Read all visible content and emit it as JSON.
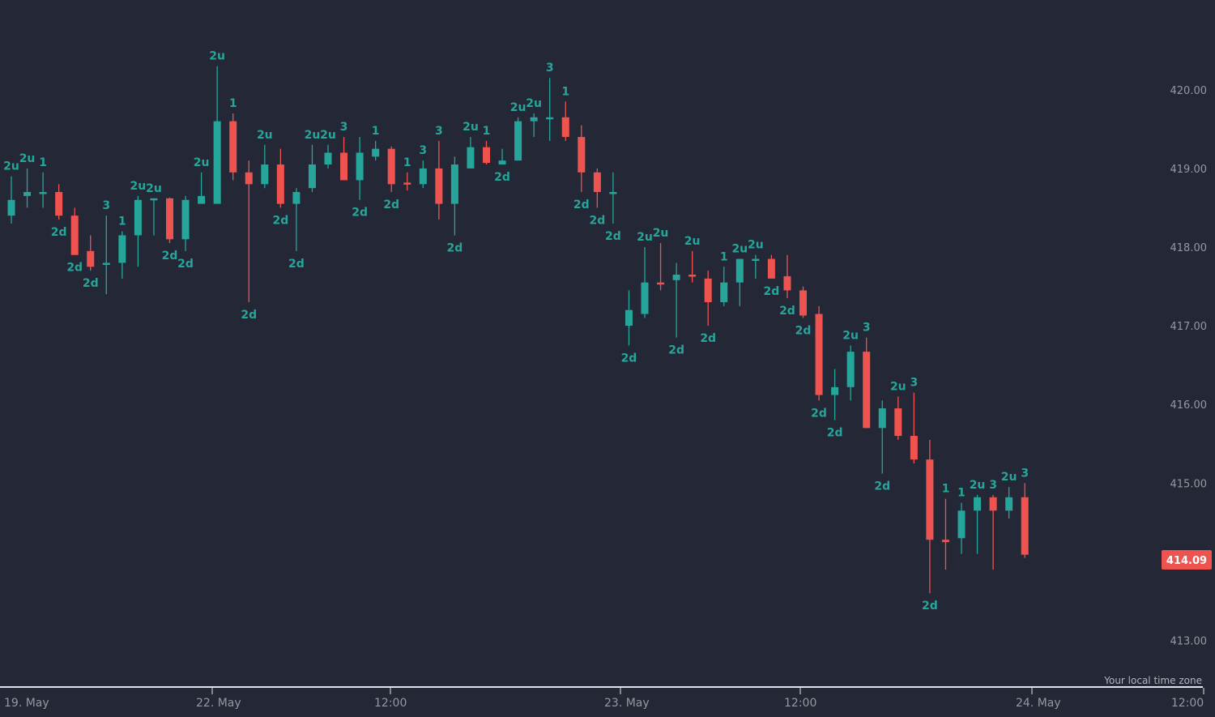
{
  "chart_data": {
    "type": "candlestick",
    "colors": {
      "background": "#242736",
      "up": "#26a69a",
      "down": "#ef5350",
      "axis_text": "#9598a1",
      "axis_line": "#e0e3eb",
      "price_tag_bg": "#ef5350",
      "price_tag_text": "#ffffff"
    },
    "ylim": [
      412.4,
      421.0
    ],
    "y_ticks": [
      "413.00",
      "415.00",
      "416.00",
      "417.00",
      "418.00",
      "419.00",
      "420.00"
    ],
    "x_labels": [
      "19. May",
      "22. May",
      "12:00",
      "23. May",
      "12:00",
      "24. May",
      "12:00"
    ],
    "last_price": "414.09",
    "timezone_label": "Your local time zone",
    "candles": [
      {
        "o": 418.4,
        "h": 418.9,
        "l": 418.3,
        "c": 418.6,
        "label": "2u",
        "pos": "above"
      },
      {
        "o": 418.65,
        "h": 419.0,
        "l": 418.5,
        "c": 418.7,
        "label": "2u",
        "pos": "above"
      },
      {
        "o": 418.7,
        "h": 418.95,
        "l": 418.5,
        "c": 418.7,
        "label": "1",
        "pos": "above"
      },
      {
        "o": 418.7,
        "h": 418.8,
        "l": 418.35,
        "c": 418.4,
        "label": "2d",
        "pos": "below"
      },
      {
        "o": 418.4,
        "h": 418.5,
        "l": 417.9,
        "c": 417.9,
        "label": "2d",
        "pos": "below"
      },
      {
        "o": 417.95,
        "h": 418.15,
        "l": 417.7,
        "c": 417.75,
        "label": "2d",
        "pos": "below"
      },
      {
        "o": 417.8,
        "h": 418.4,
        "l": 417.4,
        "c": 417.8,
        "label": "3",
        "pos": "above"
      },
      {
        "o": 417.8,
        "h": 418.2,
        "l": 417.6,
        "c": 418.15,
        "label": "1",
        "pos": "above"
      },
      {
        "o": 418.15,
        "h": 418.65,
        "l": 417.75,
        "c": 418.6,
        "label": "2u",
        "pos": "above"
      },
      {
        "o": 418.6,
        "h": 418.62,
        "l": 418.15,
        "c": 418.62,
        "label": "2u",
        "pos": "above"
      },
      {
        "o": 418.62,
        "h": 418.63,
        "l": 418.05,
        "c": 418.1,
        "label": "2d",
        "pos": "below"
      },
      {
        "o": 418.1,
        "h": 418.65,
        "l": 417.95,
        "c": 418.6,
        "label": "2d",
        "pos": "below"
      },
      {
        "o": 418.55,
        "h": 418.95,
        "l": 418.55,
        "c": 418.65,
        "label": "2u",
        "pos": "above"
      },
      {
        "o": 418.55,
        "h": 420.3,
        "l": 418.55,
        "c": 419.6,
        "label": "2u",
        "pos": "above"
      },
      {
        "o": 419.6,
        "h": 419.7,
        "l": 418.85,
        "c": 418.95,
        "label": "1",
        "pos": "above"
      },
      {
        "o": 418.95,
        "h": 419.1,
        "l": 417.3,
        "c": 418.8,
        "label": "2d",
        "pos": "below"
      },
      {
        "o": 418.8,
        "h": 419.3,
        "l": 418.75,
        "c": 419.05,
        "label": "2u",
        "pos": "above"
      },
      {
        "o": 419.05,
        "h": 419.25,
        "l": 418.5,
        "c": 418.55,
        "label": "2d",
        "pos": "below"
      },
      {
        "o": 418.55,
        "h": 418.75,
        "l": 417.95,
        "c": 418.7,
        "label": "2d",
        "pos": "below"
      },
      {
        "o": 418.75,
        "h": 419.3,
        "l": 418.7,
        "c": 419.05,
        "label": "2u",
        "pos": "above"
      },
      {
        "o": 419.05,
        "h": 419.3,
        "l": 419.0,
        "c": 419.2,
        "label": "2u",
        "pos": "above"
      },
      {
        "o": 419.2,
        "h": 419.4,
        "l": 418.85,
        "c": 418.85,
        "label": "3",
        "pos": "above"
      },
      {
        "o": 418.85,
        "h": 419.4,
        "l": 418.6,
        "c": 419.2,
        "label": "2d",
        "pos": "below"
      },
      {
        "o": 419.15,
        "h": 419.35,
        "l": 419.1,
        "c": 419.25,
        "label": "1",
        "pos": "above"
      },
      {
        "o": 419.25,
        "h": 419.28,
        "l": 418.7,
        "c": 418.8,
        "label": "2d",
        "pos": "below"
      },
      {
        "o": 418.82,
        "h": 418.95,
        "l": 418.72,
        "c": 418.8,
        "label": "1",
        "pos": "above"
      },
      {
        "o": 418.8,
        "h": 419.1,
        "l": 418.75,
        "c": 419.0,
        "label": "3",
        "pos": "above"
      },
      {
        "o": 419.0,
        "h": 419.35,
        "l": 418.35,
        "c": 418.55,
        "label": "3",
        "pos": "above"
      },
      {
        "o": 418.55,
        "h": 419.15,
        "l": 418.15,
        "c": 419.05,
        "label": "2d",
        "pos": "below"
      },
      {
        "o": 419.0,
        "h": 419.4,
        "l": 419.0,
        "c": 419.27,
        "label": "2u",
        "pos": "above"
      },
      {
        "o": 419.27,
        "h": 419.35,
        "l": 419.05,
        "c": 419.07,
        "label": "1",
        "pos": "above"
      },
      {
        "o": 419.05,
        "h": 419.25,
        "l": 419.05,
        "c": 419.1,
        "label": "2d",
        "pos": "below"
      },
      {
        "o": 419.1,
        "h": 419.65,
        "l": 419.1,
        "c": 419.6,
        "label": "2u",
        "pos": "above"
      },
      {
        "o": 419.6,
        "h": 419.7,
        "l": 419.4,
        "c": 419.65,
        "label": "2u",
        "pos": "above"
      },
      {
        "o": 419.65,
        "h": 420.15,
        "l": 419.35,
        "c": 419.65,
        "label": "3",
        "pos": "above"
      },
      {
        "o": 419.65,
        "h": 419.85,
        "l": 419.35,
        "c": 419.4,
        "label": "1",
        "pos": "above"
      },
      {
        "o": 419.4,
        "h": 419.55,
        "l": 418.7,
        "c": 418.95,
        "label": "2d",
        "pos": "below"
      },
      {
        "o": 418.95,
        "h": 419.0,
        "l": 418.5,
        "c": 418.7,
        "label": "2d",
        "pos": "below"
      },
      {
        "o": 418.7,
        "h": 418.95,
        "l": 418.3,
        "c": 418.7,
        "label": "2d",
        "pos": "below"
      },
      {
        "o": 417.0,
        "h": 417.45,
        "l": 416.75,
        "c": 417.2,
        "label": "2d",
        "pos": "below"
      },
      {
        "o": 417.15,
        "h": 418.0,
        "l": 417.1,
        "c": 417.55,
        "label": "2u",
        "pos": "above"
      },
      {
        "o": 417.55,
        "h": 418.05,
        "l": 417.45,
        "c": 417.53,
        "label": "2u",
        "pos": "above"
      },
      {
        "o": 417.58,
        "h": 417.8,
        "l": 416.85,
        "c": 417.65,
        "label": "2d",
        "pos": "below"
      },
      {
        "o": 417.65,
        "h": 417.95,
        "l": 417.55,
        "c": 417.63,
        "label": "2u",
        "pos": "above"
      },
      {
        "o": 417.6,
        "h": 417.7,
        "l": 417.0,
        "c": 417.3,
        "label": "2d",
        "pos": "below"
      },
      {
        "o": 417.3,
        "h": 417.75,
        "l": 417.25,
        "c": 417.55,
        "label": "1",
        "pos": "above"
      },
      {
        "o": 417.55,
        "h": 417.85,
        "l": 417.25,
        "c": 417.85,
        "label": "2u",
        "pos": "above"
      },
      {
        "o": 417.83,
        "h": 417.9,
        "l": 417.6,
        "c": 417.85,
        "label": "2u",
        "pos": "above"
      },
      {
        "o": 417.85,
        "h": 417.9,
        "l": 417.6,
        "c": 417.6,
        "label": "2d",
        "pos": "below"
      },
      {
        "o": 417.63,
        "h": 417.9,
        "l": 417.35,
        "c": 417.45,
        "label": "2d",
        "pos": "below"
      },
      {
        "o": 417.45,
        "h": 417.5,
        "l": 417.1,
        "c": 417.13,
        "label": "2d",
        "pos": "below"
      },
      {
        "o": 417.15,
        "h": 417.25,
        "l": 416.05,
        "c": 416.12,
        "label": "2d",
        "pos": "below"
      },
      {
        "o": 416.12,
        "h": 416.45,
        "l": 415.8,
        "c": 416.22,
        "label": "2d",
        "pos": "below"
      },
      {
        "o": 416.22,
        "h": 416.75,
        "l": 416.05,
        "c": 416.67,
        "label": "2u",
        "pos": "above"
      },
      {
        "o": 416.67,
        "h": 416.85,
        "l": 415.7,
        "c": 415.7,
        "label": "3",
        "pos": "above"
      },
      {
        "o": 415.7,
        "h": 416.05,
        "l": 415.12,
        "c": 415.95,
        "label": "2d",
        "pos": "below"
      },
      {
        "o": 415.95,
        "h": 416.1,
        "l": 415.55,
        "c": 415.6,
        "label": "2u",
        "pos": "above"
      },
      {
        "o": 415.6,
        "h": 416.15,
        "l": 415.25,
        "c": 415.3,
        "label": "3",
        "pos": "above"
      },
      {
        "o": 415.3,
        "h": 415.55,
        "l": 413.6,
        "c": 414.28,
        "label": "2d",
        "pos": "below"
      },
      {
        "o": 414.28,
        "h": 414.8,
        "l": 413.9,
        "c": 414.25,
        "label": "1",
        "pos": "above"
      },
      {
        "o": 414.3,
        "h": 414.75,
        "l": 414.1,
        "c": 414.65,
        "label": "1",
        "pos": "above"
      },
      {
        "o": 414.65,
        "h": 414.85,
        "l": 414.1,
        "c": 414.82,
        "label": "2u",
        "pos": "above"
      },
      {
        "o": 414.82,
        "h": 414.85,
        "l": 413.9,
        "c": 414.65,
        "label": "3",
        "pos": "above"
      },
      {
        "o": 414.65,
        "h": 414.95,
        "l": 414.55,
        "c": 414.82,
        "label": "2u",
        "pos": "above"
      },
      {
        "o": 414.82,
        "h": 415.0,
        "l": 414.05,
        "c": 414.09,
        "label": "3",
        "pos": "above"
      }
    ]
  }
}
